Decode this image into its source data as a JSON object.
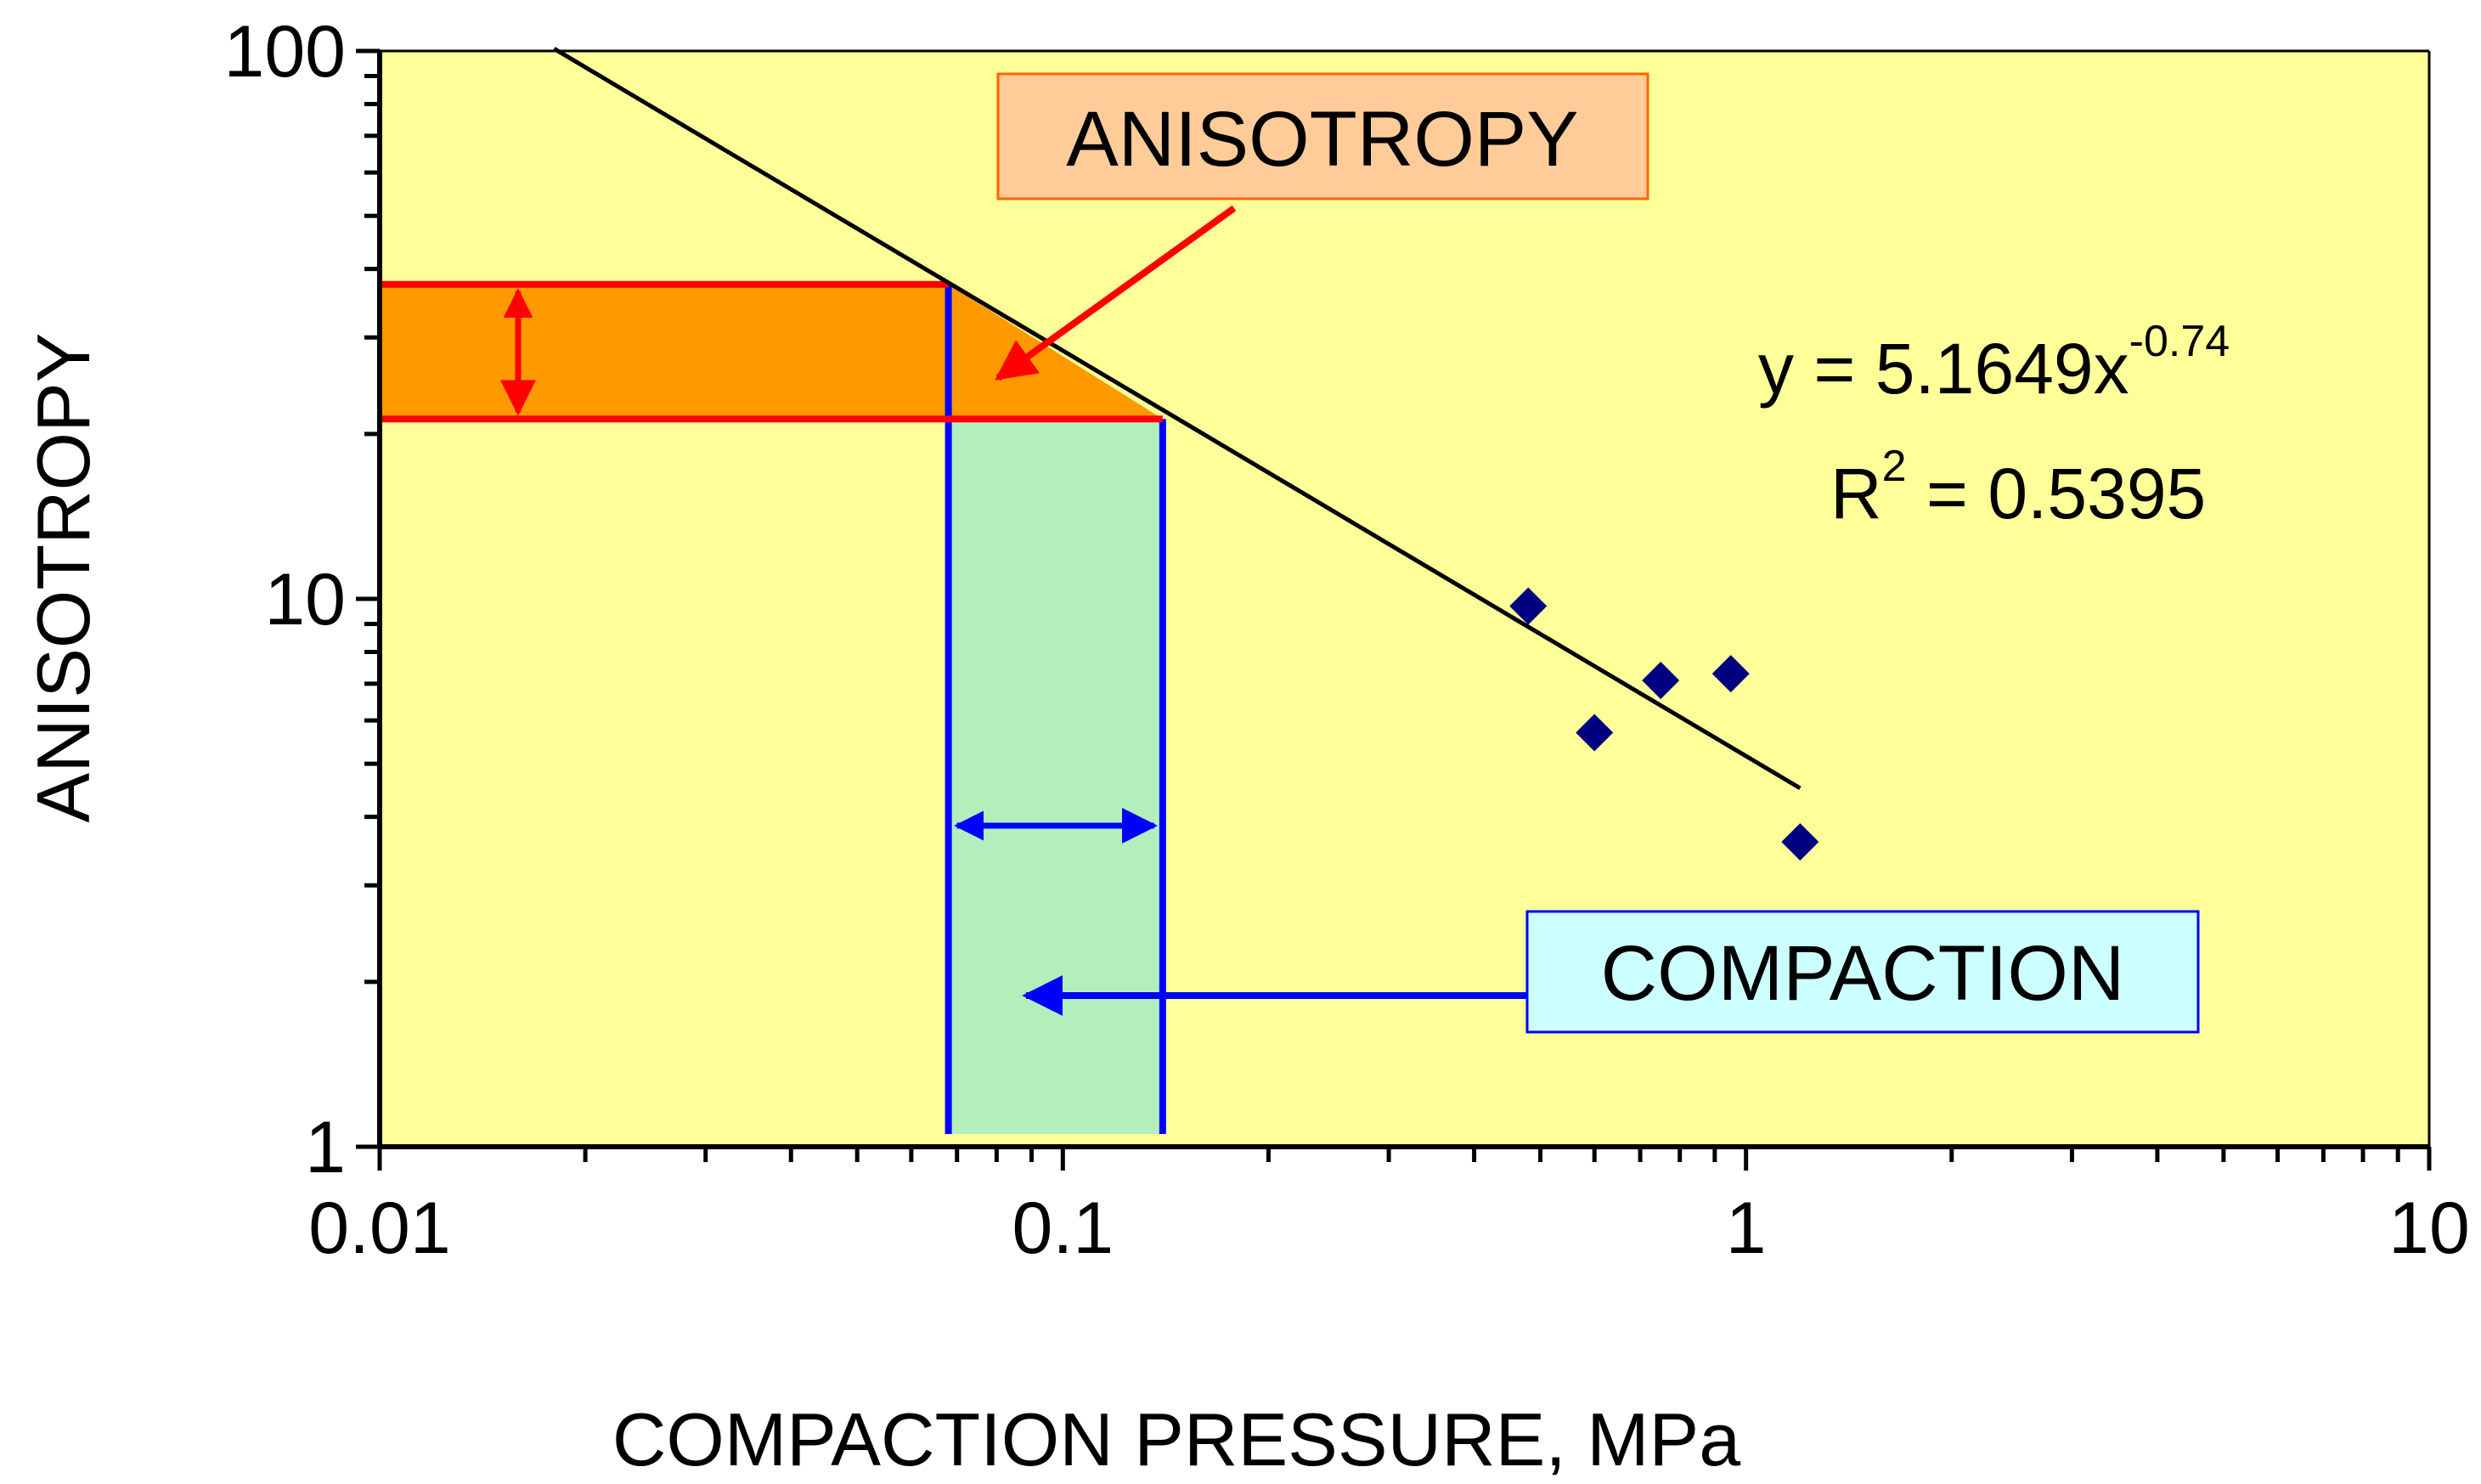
{
  "chart_data": {
    "type": "scatter",
    "x_scale": "log",
    "y_scale": "log",
    "xlim": [
      0.01,
      10
    ],
    "ylim": [
      1,
      100
    ],
    "xlabel": "COMPACTION PRESSURE, MPa",
    "ylabel": "ANISOTROPY",
    "x_ticks": [
      "0.01",
      "0.1",
      "1",
      "10"
    ],
    "y_ticks": [
      "1",
      "10",
      "100"
    ],
    "grid": false,
    "plot_background": "#FFFF99",
    "series": [
      {
        "marker": "diamond",
        "color": "#000080",
        "points": [
          {
            "x": 0.48,
            "y": 9.7
          },
          {
            "x": 0.6,
            "y": 5.7
          },
          {
            "x": 0.75,
            "y": 7.1
          },
          {
            "x": 0.95,
            "y": 7.3
          },
          {
            "x": 1.2,
            "y": 3.6
          }
        ]
      }
    ],
    "trendline": {
      "type": "power",
      "a": 5.1649,
      "b": -0.74,
      "x_range": [
        0.018,
        1.2
      ],
      "color": "#000000"
    },
    "equation": {
      "line1_prefix": "y = 5.1649x",
      "line1_exponent": "-0.74",
      "line2_prefix": "R",
      "line2_exponent": "2",
      "line2_suffix": " = 0.5395"
    },
    "annotations": {
      "anisotropy": {
        "label": "ANISOTROPY",
        "fill": "#FFCC99",
        "border": "#FF6600",
        "arrow_color": "#FF0000",
        "band_fill": "#FF9900",
        "band_border": "#FF0000",
        "y_range": [
          21.3,
          37.5
        ]
      },
      "compaction": {
        "label": "COMPACTION",
        "fill": "#CCFFFF",
        "border": "#0000FF",
        "arrow_color": "#0000FF",
        "band_fill": "#B3EFBC",
        "band_border": "#0000FF",
        "x_range": [
          0.068,
          0.14
        ]
      }
    }
  }
}
